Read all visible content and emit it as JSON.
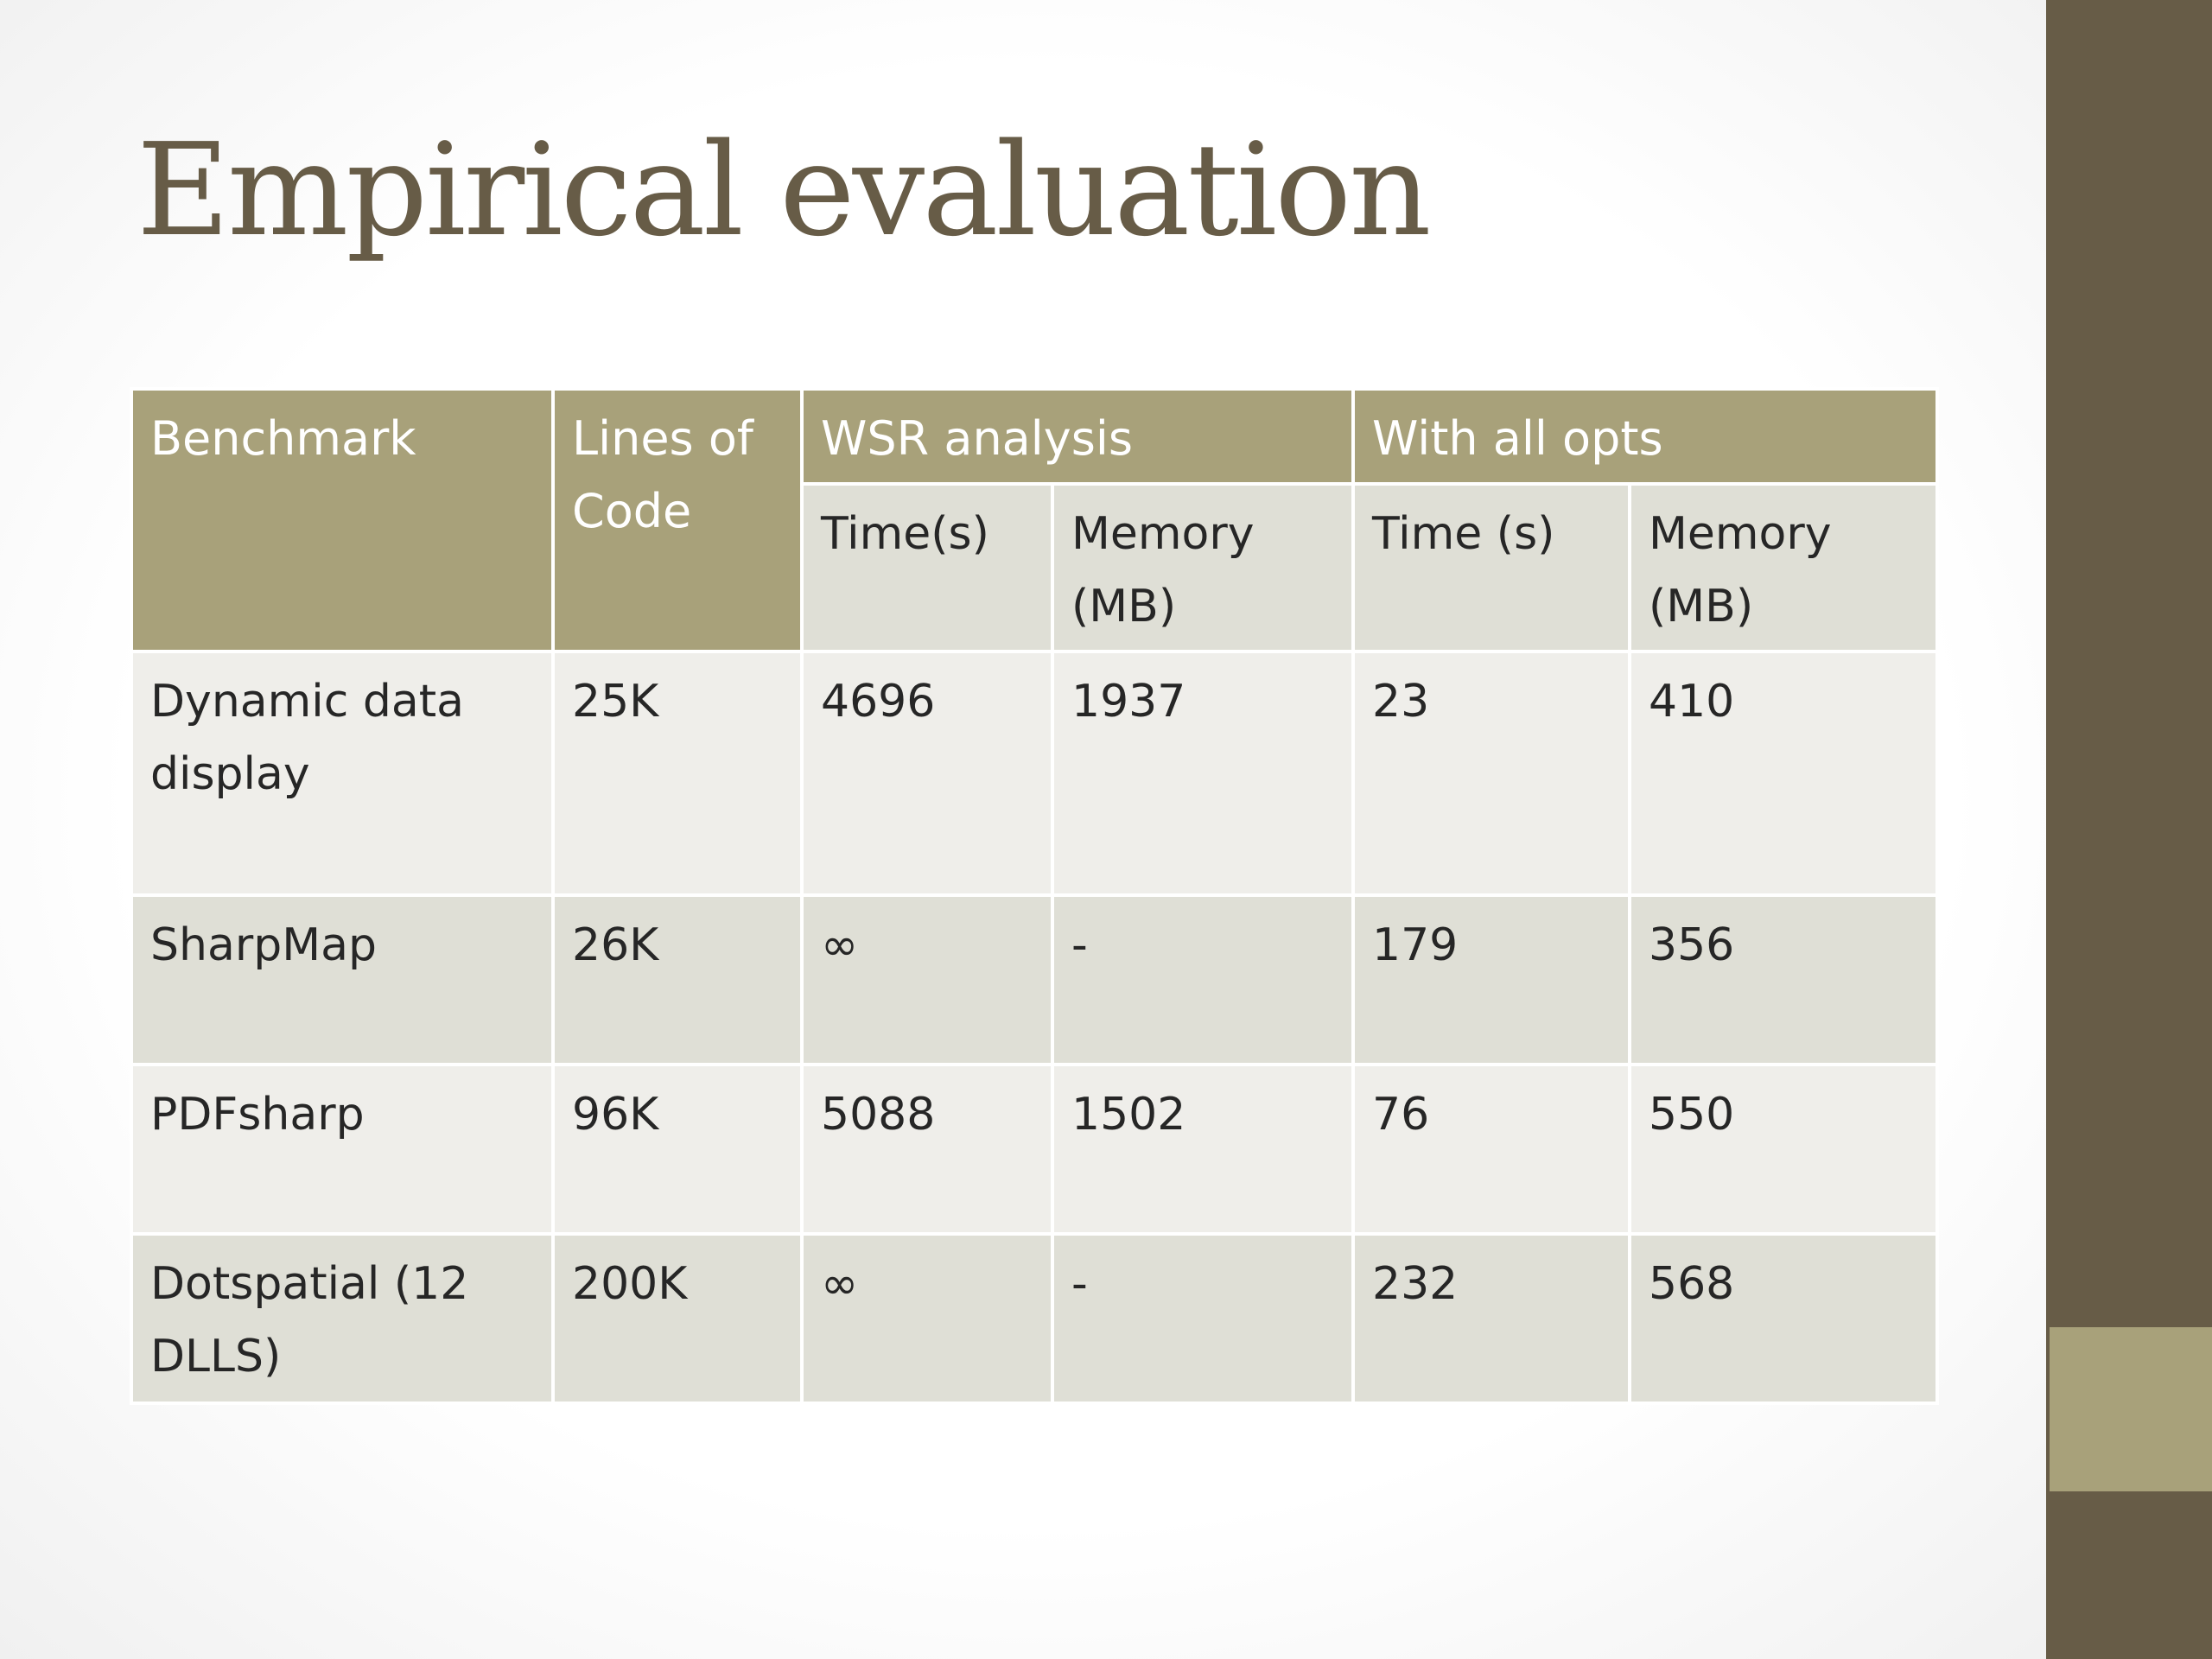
{
  "title": "Empirical evaluation",
  "table": {
    "header": {
      "benchmark": "Benchmark",
      "lines_of_code": "Lines of Code",
      "wsr_analysis": "WSR analysis",
      "with_all_opts": "With all opts",
      "wsr_time": "Time(s)",
      "wsr_memory": "Memory (MB)",
      "opts_time": "Time (s)",
      "opts_memory": "Memory (MB)"
    },
    "rows": [
      {
        "benchmark": "Dynamic data display",
        "loc": "25K",
        "wsr_time": "4696",
        "wsr_memory": "1937",
        "opts_time": "23",
        "opts_memory": "410"
      },
      {
        "benchmark": "SharpMap",
        "loc": "26K",
        "wsr_time": "∞",
        "wsr_memory": "-",
        "opts_time": "179",
        "opts_memory": "356"
      },
      {
        "benchmark": "PDFsharp",
        "loc": "96K",
        "wsr_time": "5088",
        "wsr_memory": "1502",
        "opts_time": "76",
        "opts_memory": "550"
      },
      {
        "benchmark": "Dotspatial (12 DLLS)",
        "loc": "200K",
        "wsr_time": "∞",
        "wsr_memory": "-",
        "opts_time": "232",
        "opts_memory": "568"
      }
    ]
  },
  "colors": {
    "header": "#a8a17a",
    "title": "#675c47",
    "sidebar": "#675c47",
    "row_light": "#efeeea",
    "row_dark": "#dfdfd6"
  }
}
